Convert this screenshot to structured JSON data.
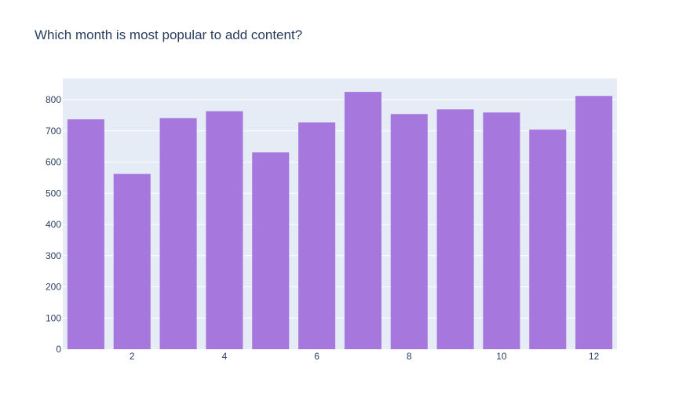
{
  "chart_data": {
    "type": "bar",
    "title": "Which month is most popular to add content?",
    "xlabel": "",
    "ylabel": "",
    "x": [
      1,
      2,
      3,
      4,
      5,
      6,
      7,
      8,
      9,
      10,
      11,
      12
    ],
    "values": [
      737,
      562,
      741,
      763,
      631,
      727,
      825,
      754,
      769,
      759,
      704,
      812
    ],
    "x_ticks": [
      2,
      4,
      6,
      8,
      10,
      12
    ],
    "x_tick_labels": [
      "2",
      "4",
      "6",
      "8",
      "10",
      "12"
    ],
    "y_ticks": [
      0,
      100,
      200,
      300,
      400,
      500,
      600,
      700,
      800
    ],
    "y_tick_labels": [
      "0",
      "100",
      "200",
      "300",
      "400",
      "500",
      "600",
      "700",
      "800"
    ],
    "xlim": [
      0.5,
      12.5
    ],
    "ylim": [
      0,
      868
    ],
    "grid": true,
    "colors": {
      "bar": "#a678de",
      "plot_bg": "#e5ecf6",
      "grid": "#ffffff",
      "text": "#2a3f5f"
    }
  }
}
